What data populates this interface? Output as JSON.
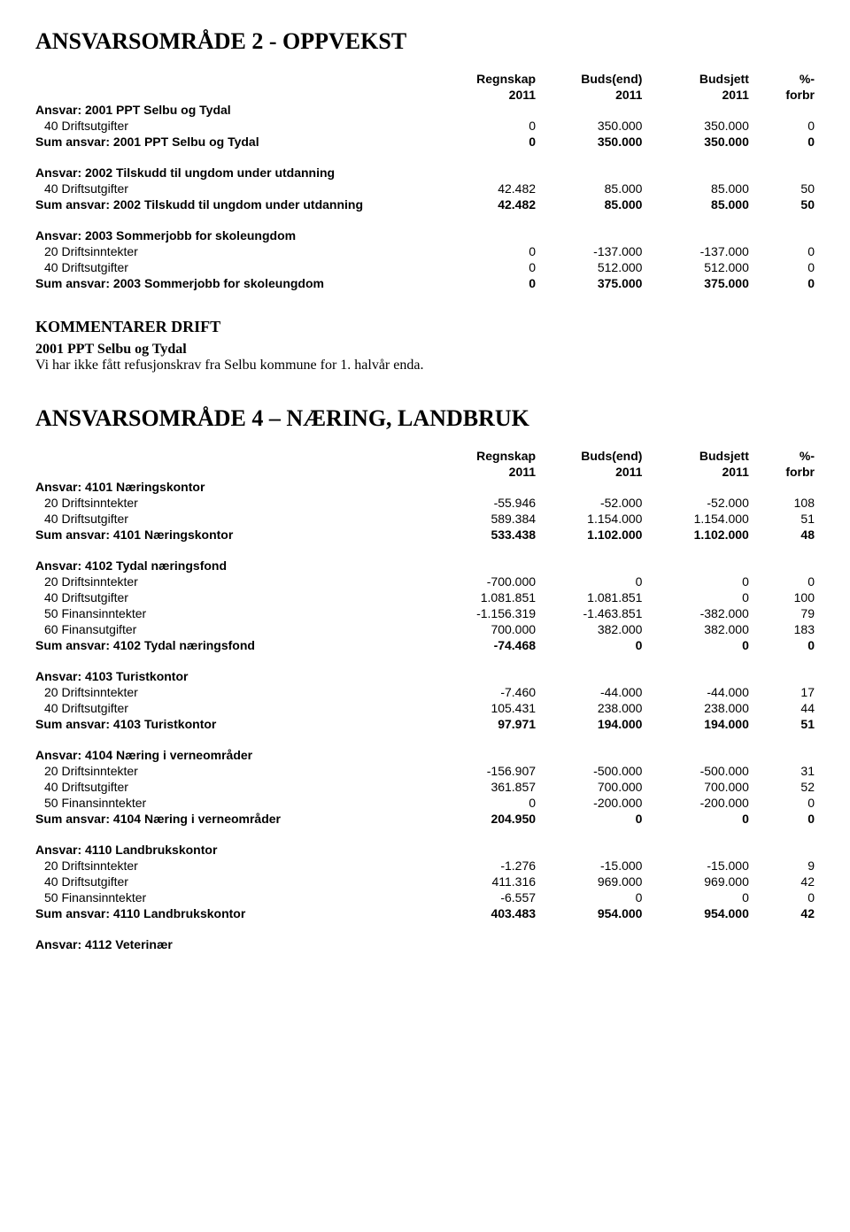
{
  "page": {
    "title1": "ANSVARSOMRÅDE 2 - OPPVEKST",
    "title2": "ANSVARSOMRÅDE 4 – NÆRING, LANDBRUK",
    "commentHeading": "KOMMENTARER DRIFT",
    "commentSub": "2001 PPT Selbu og Tydal",
    "commentText": "Vi har ikke fått refusjonskrav fra Selbu kommune for 1. halvår enda."
  },
  "headers": {
    "c1": "Regnskap",
    "c1b": "2011",
    "c2": "Buds(end)",
    "c2b": "2011",
    "c3": "Budsjett",
    "c3b": "2011",
    "c4": "%-",
    "c4b": "forbr"
  },
  "t1": {
    "groups": [
      {
        "title": "Ansvar: 2001 PPT Selbu og Tydal",
        "rows": [
          {
            "label": "40 Driftsutgifter",
            "r": "0",
            "be": "350.000",
            "b": "350.000",
            "p": "0"
          }
        ],
        "sum": {
          "label": "Sum ansvar: 2001 PPT Selbu og Tydal",
          "r": "0",
          "be": "350.000",
          "b": "350.000",
          "p": "0"
        }
      },
      {
        "title": "Ansvar: 2002 Tilskudd til ungdom under utdanning",
        "rows": [
          {
            "label": "40 Driftsutgifter",
            "r": "42.482",
            "be": "85.000",
            "b": "85.000",
            "p": "50"
          }
        ],
        "sum": {
          "label": "Sum ansvar: 2002 Tilskudd til ungdom under utdanning",
          "r": "42.482",
          "be": "85.000",
          "b": "85.000",
          "p": "50"
        }
      },
      {
        "title": "Ansvar: 2003 Sommerjobb for skoleungdom",
        "rows": [
          {
            "label": "20 Driftsinntekter",
            "r": "0",
            "be": "-137.000",
            "b": "-137.000",
            "p": "0"
          },
          {
            "label": "40 Driftsutgifter",
            "r": "0",
            "be": "512.000",
            "b": "512.000",
            "p": "0"
          }
        ],
        "sum": {
          "label": "Sum ansvar: 2003 Sommerjobb for skoleungdom",
          "r": "0",
          "be": "375.000",
          "b": "375.000",
          "p": "0"
        }
      }
    ]
  },
  "t2": {
    "groups": [
      {
        "title": "Ansvar: 4101 Næringskontor",
        "rows": [
          {
            "label": "20 Driftsinntekter",
            "r": "-55.946",
            "be": "-52.000",
            "b": "-52.000",
            "p": "108"
          },
          {
            "label": "40 Driftsutgifter",
            "r": "589.384",
            "be": "1.154.000",
            "b": "1.154.000",
            "p": "51"
          }
        ],
        "sum": {
          "label": "Sum ansvar: 4101 Næringskontor",
          "r": "533.438",
          "be": "1.102.000",
          "b": "1.102.000",
          "p": "48"
        }
      },
      {
        "title": "Ansvar: 4102 Tydal næringsfond",
        "rows": [
          {
            "label": "20 Driftsinntekter",
            "r": "-700.000",
            "be": "0",
            "b": "0",
            "p": "0"
          },
          {
            "label": "40 Driftsutgifter",
            "r": "1.081.851",
            "be": "1.081.851",
            "b": "0",
            "p": "100"
          },
          {
            "label": "50 Finansinntekter",
            "r": "-1.156.319",
            "be": "-1.463.851",
            "b": "-382.000",
            "p": "79"
          },
          {
            "label": "60 Finansutgifter",
            "r": "700.000",
            "be": "382.000",
            "b": "382.000",
            "p": "183"
          }
        ],
        "sum": {
          "label": "Sum ansvar: 4102 Tydal næringsfond",
          "r": "-74.468",
          "be": "0",
          "b": "0",
          "p": "0"
        }
      },
      {
        "title": "Ansvar: 4103 Turistkontor",
        "rows": [
          {
            "label": "20 Driftsinntekter",
            "r": "-7.460",
            "be": "-44.000",
            "b": "-44.000",
            "p": "17"
          },
          {
            "label": "40 Driftsutgifter",
            "r": "105.431",
            "be": "238.000",
            "b": "238.000",
            "p": "44"
          }
        ],
        "sum": {
          "label": "Sum ansvar: 4103 Turistkontor",
          "r": "97.971",
          "be": "194.000",
          "b": "194.000",
          "p": "51"
        }
      },
      {
        "title": "Ansvar: 4104 Næring i verneområder",
        "rows": [
          {
            "label": "20 Driftsinntekter",
            "r": "-156.907",
            "be": "-500.000",
            "b": "-500.000",
            "p": "31"
          },
          {
            "label": "40 Driftsutgifter",
            "r": "361.857",
            "be": "700.000",
            "b": "700.000",
            "p": "52"
          },
          {
            "label": "50 Finansinntekter",
            "r": "0",
            "be": "-200.000",
            "b": "-200.000",
            "p": "0"
          }
        ],
        "sum": {
          "label": "Sum ansvar: 4104 Næring i verneområder",
          "r": "204.950",
          "be": "0",
          "b": "0",
          "p": "0"
        }
      },
      {
        "title": "Ansvar: 4110 Landbrukskontor",
        "rows": [
          {
            "label": "20 Driftsinntekter",
            "r": "-1.276",
            "be": "-15.000",
            "b": "-15.000",
            "p": "9"
          },
          {
            "label": "40 Driftsutgifter",
            "r": "411.316",
            "be": "969.000",
            "b": "969.000",
            "p": "42"
          },
          {
            "label": "50 Finansinntekter",
            "r": "-6.557",
            "be": "0",
            "b": "0",
            "p": "0"
          }
        ],
        "sum": {
          "label": "Sum ansvar: 4110 Landbrukskontor",
          "r": "403.483",
          "be": "954.000",
          "b": "954.000",
          "p": "42"
        }
      },
      {
        "title": "Ansvar: 4112 Veterinær",
        "rows": [],
        "sum": null
      }
    ]
  }
}
